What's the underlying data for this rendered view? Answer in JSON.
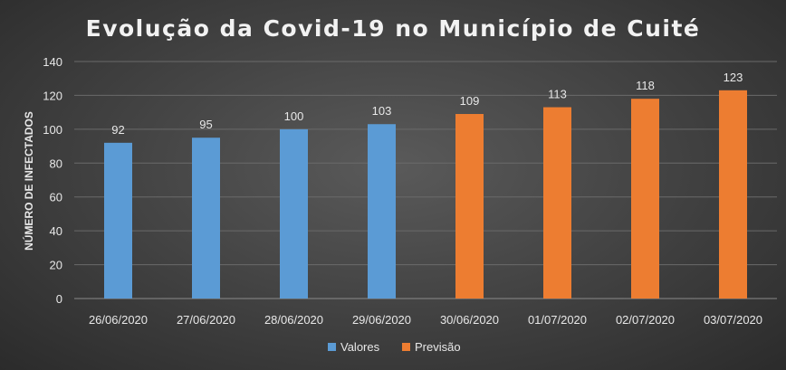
{
  "chart_data": {
    "type": "bar",
    "title": "Evolução da Covid-19 no Município de Cuité",
    "xlabel": "",
    "ylabel": "NÚMERO DE INFECTADOS",
    "ylim": [
      0,
      140
    ],
    "yticks": [
      "0",
      "20",
      "40",
      "60",
      "80",
      "100",
      "120",
      "140"
    ],
    "grid": true,
    "legend_position": "bottom",
    "categories": [
      "26/06/2020",
      "27/06/2020",
      "28/06/2020",
      "29/06/2020",
      "30/06/2020",
      "01/07/2020",
      "02/07/2020",
      "03/07/2020"
    ],
    "series": [
      {
        "name": "Valores",
        "color": "#5b9bd5",
        "values": [
          92,
          95,
          100,
          103,
          null,
          null,
          null,
          null
        ]
      },
      {
        "name": "Previsão",
        "color": "#ed7d31",
        "values": [
          null,
          null,
          null,
          null,
          109,
          113,
          118,
          123
        ]
      }
    ]
  }
}
